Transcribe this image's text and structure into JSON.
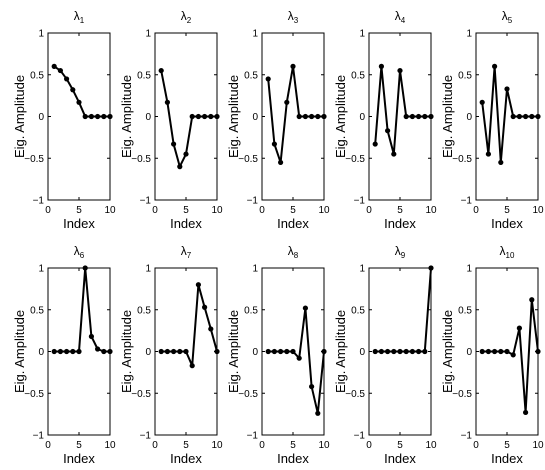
{
  "chart_data": [
    {
      "type": "line",
      "title_symbol": "λ",
      "title_sub": "1",
      "xlabel": "Index",
      "ylabel": "Eig. Amplitude",
      "xlim": [
        0,
        10
      ],
      "ylim": [
        -1,
        1
      ],
      "xticks": [
        0,
        5,
        10
      ],
      "yticks": [
        -1,
        -0.5,
        0,
        0.5,
        1
      ],
      "x": [
        1,
        2,
        3,
        4,
        5,
        6,
        7,
        8,
        9,
        10
      ],
      "values": [
        0.6,
        0.55,
        0.45,
        0.32,
        0.17,
        0,
        0,
        0,
        0,
        0
      ]
    },
    {
      "type": "line",
      "title_symbol": "λ",
      "title_sub": "2",
      "xlabel": "Index",
      "ylabel": "Eig. Amplitude",
      "xlim": [
        0,
        10
      ],
      "ylim": [
        -1,
        1
      ],
      "xticks": [
        0,
        5,
        10
      ],
      "yticks": [
        -1,
        -0.5,
        0,
        0.5,
        1
      ],
      "x": [
        1,
        2,
        3,
        4,
        5,
        6,
        7,
        8,
        9,
        10
      ],
      "values": [
        0.55,
        0.17,
        -0.33,
        -0.6,
        -0.45,
        0,
        0,
        0,
        0,
        0
      ]
    },
    {
      "type": "line",
      "title_symbol": "λ",
      "title_sub": "3",
      "xlabel": "Index",
      "ylabel": "Eig. Amplitude",
      "xlim": [
        0,
        10
      ],
      "ylim": [
        -1,
        1
      ],
      "xticks": [
        0,
        5,
        10
      ],
      "yticks": [
        -1,
        -0.5,
        0,
        0.5,
        1
      ],
      "x": [
        1,
        2,
        3,
        4,
        5,
        6,
        7,
        8,
        9,
        10
      ],
      "values": [
        0.45,
        -0.33,
        -0.55,
        0.17,
        0.6,
        0,
        0,
        0,
        0,
        0
      ]
    },
    {
      "type": "line",
      "title_symbol": "λ",
      "title_sub": "4",
      "xlabel": "Index",
      "ylabel": "Eig. Amplitude",
      "xlim": [
        0,
        10
      ],
      "ylim": [
        -1,
        1
      ],
      "xticks": [
        0,
        5,
        10
      ],
      "yticks": [
        -1,
        -0.5,
        0,
        0.5,
        1
      ],
      "x": [
        1,
        2,
        3,
        4,
        5,
        6,
        7,
        8,
        9,
        10
      ],
      "values": [
        -0.33,
        0.6,
        -0.17,
        -0.45,
        0.55,
        0,
        0,
        0,
        0,
        0
      ]
    },
    {
      "type": "line",
      "title_symbol": "λ",
      "title_sub": "5",
      "xlabel": "Index",
      "ylabel": "Eig. Amplitude",
      "xlim": [
        0,
        10
      ],
      "ylim": [
        -1,
        1
      ],
      "xticks": [
        0,
        5,
        10
      ],
      "yticks": [
        -1,
        -0.5,
        0,
        0.5,
        1
      ],
      "x": [
        1,
        2,
        3,
        4,
        5,
        6,
        7,
        8,
        9,
        10
      ],
      "values": [
        0.17,
        -0.45,
        0.6,
        -0.55,
        0.33,
        0,
        0,
        0,
        0,
        0
      ]
    },
    {
      "type": "line",
      "title_symbol": "λ",
      "title_sub": "6",
      "xlabel": "Index",
      "ylabel": "Eig. Amplitude",
      "xlim": [
        0,
        10
      ],
      "ylim": [
        -1,
        1
      ],
      "xticks": [
        0,
        5,
        10
      ],
      "yticks": [
        -1,
        -0.5,
        0,
        0.5,
        1
      ],
      "x": [
        1,
        2,
        3,
        4,
        5,
        6,
        7,
        8,
        9,
        10
      ],
      "values": [
        0,
        0,
        0,
        0,
        0,
        1,
        0.18,
        0.03,
        0,
        0
      ]
    },
    {
      "type": "line",
      "title_symbol": "λ",
      "title_sub": "7",
      "xlabel": "Index",
      "ylabel": "Eig. Amplitude",
      "xlim": [
        0,
        10
      ],
      "ylim": [
        -1,
        1
      ],
      "xticks": [
        0,
        5,
        10
      ],
      "yticks": [
        -1,
        -0.5,
        0,
        0.5,
        1
      ],
      "x": [
        1,
        2,
        3,
        4,
        5,
        6,
        7,
        8,
        9,
        10
      ],
      "values": [
        0,
        0,
        0,
        0,
        0,
        -0.17,
        0.8,
        0.53,
        0.27,
        0
      ]
    },
    {
      "type": "line",
      "title_symbol": "λ",
      "title_sub": "8",
      "xlabel": "Index",
      "ylabel": "Eig. Amplitude",
      "xlim": [
        0,
        10
      ],
      "ylim": [
        -1,
        1
      ],
      "xticks": [
        0,
        5,
        10
      ],
      "yticks": [
        -1,
        -0.5,
        0,
        0.5,
        1
      ],
      "x": [
        1,
        2,
        3,
        4,
        5,
        6,
        7,
        8,
        9,
        10
      ],
      "values": [
        0,
        0,
        0,
        0,
        0,
        -0.08,
        0.52,
        -0.42,
        -0.74,
        0
      ]
    },
    {
      "type": "line",
      "title_symbol": "λ",
      "title_sub": "9",
      "xlabel": "Index",
      "ylabel": "Eig. Amplitude",
      "xlim": [
        0,
        10
      ],
      "ylim": [
        -1,
        1
      ],
      "xticks": [
        0,
        5,
        10
      ],
      "yticks": [
        -1,
        -0.5,
        0,
        0.5,
        1
      ],
      "x": [
        1,
        2,
        3,
        4,
        5,
        6,
        7,
        8,
        9,
        10
      ],
      "values": [
        0,
        0,
        0,
        0,
        0,
        0,
        0,
        0,
        0,
        1
      ]
    },
    {
      "type": "line",
      "title_symbol": "λ",
      "title_sub": "10",
      "xlabel": "Index",
      "ylabel": "Eig. Amplitude",
      "xlim": [
        0,
        10
      ],
      "ylim": [
        -1,
        1
      ],
      "xticks": [
        0,
        5,
        10
      ],
      "yticks": [
        -1,
        -0.5,
        0,
        0.5,
        1
      ],
      "x": [
        1,
        2,
        3,
        4,
        5,
        6,
        7,
        8,
        9,
        10
      ],
      "values": [
        0,
        0,
        0,
        0,
        0,
        -0.04,
        0.28,
        -0.73,
        0.62,
        0
      ]
    }
  ],
  "style": {
    "line_color": "#000000",
    "marker_color": "#000000",
    "axis_color": "#000000",
    "background": "#ffffff"
  }
}
